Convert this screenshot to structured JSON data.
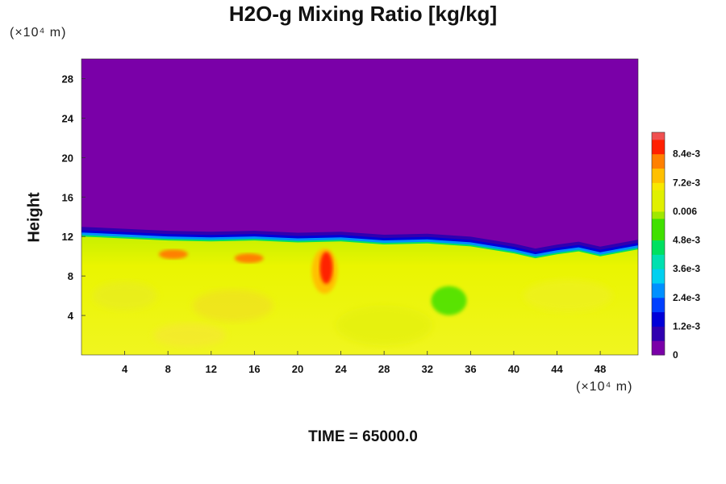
{
  "title": "H2O-g Mixing Ratio [kg/kg]",
  "y_unit": "(×10⁴ m)",
  "x_unit": "(×10⁴ m)",
  "y_label": "Height",
  "time_label": "TIME = 65000.0",
  "chart_data": {
    "type": "heatmap",
    "title": "H2O-g Mixing Ratio [kg/kg]",
    "ylabel": "Height",
    "xlim": [
      0,
      51.5
    ],
    "ylim": [
      0,
      30
    ],
    "x_ticks": [
      "4",
      "8",
      "12",
      "16",
      "20",
      "24",
      "28",
      "32",
      "36",
      "40",
      "44",
      "48"
    ],
    "x_tick_values": [
      4,
      8,
      12,
      16,
      20,
      24,
      28,
      32,
      36,
      40,
      44,
      48
    ],
    "y_ticks": [
      "4",
      "8",
      "12",
      "16",
      "20",
      "24",
      "28"
    ],
    "y_tick_values": [
      4,
      8,
      12,
      16,
      20,
      24,
      28
    ],
    "colorbar": {
      "range": [
        0,
        0.0093
      ],
      "tick_labels": [
        "0",
        "1.2e-3",
        "2.4e-3",
        "3.6e-3",
        "4.8e-3",
        "0.006",
        "7.2e-3",
        "8.4e-3"
      ],
      "tick_values": [
        0,
        0.0012,
        0.0024,
        0.0036,
        0.0048,
        0.006,
        0.0072,
        0.0084
      ]
    },
    "field": {
      "upper_layer_value": 0,
      "lower_layer_value": 0.0062,
      "interface_height_profile": {
        "x": [
          0,
          4,
          8,
          12,
          16,
          20,
          24,
          28,
          32,
          36,
          40,
          42,
          44,
          46,
          48,
          51.5
        ],
        "y": [
          12,
          11.8,
          11.6,
          11.5,
          11.6,
          11.4,
          11.5,
          11.2,
          11.3,
          11.0,
          10.3,
          9.8,
          10.2,
          10.5,
          10.0,
          10.7
        ]
      },
      "features": [
        {
          "kind": "moist plume",
          "x": 22.5,
          "y": 8.5,
          "value": 0.0088
        },
        {
          "kind": "moist patch",
          "x": 8.5,
          "y": 10.2,
          "value": 0.008
        },
        {
          "kind": "moist patch",
          "x": 15.5,
          "y": 9.8,
          "value": 0.0078
        },
        {
          "kind": "dry eddy",
          "x": 34,
          "y": 5.5,
          "value": 0.005
        }
      ]
    }
  }
}
